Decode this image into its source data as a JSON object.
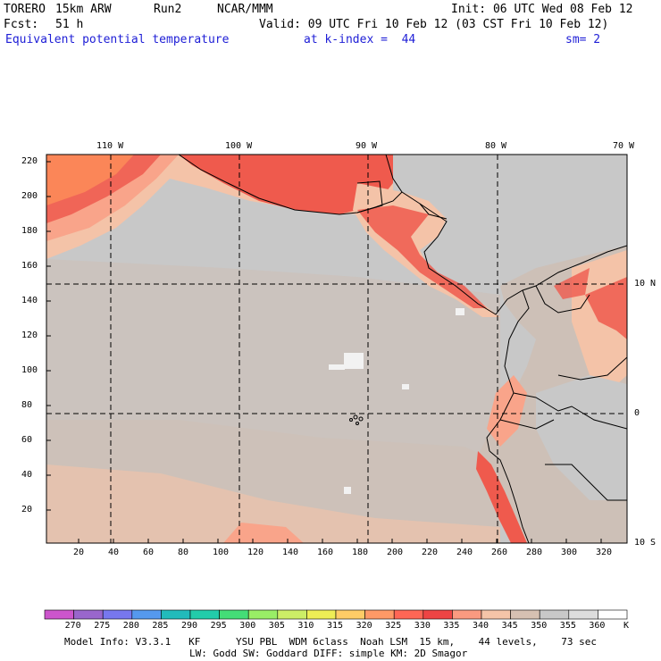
{
  "header": {
    "model": "TORERO",
    "resolution": "15km ARW",
    "run": "Run2",
    "org": "NCAR/MMM",
    "init": "Init: 06 UTC Wed 08 Feb 12",
    "fcst_label": "Fcst:",
    "fcst_value": "51 h",
    "valid": "Valid: 09 UTC Fri 10 Feb 12 (03 CST Fri 10 Feb 12)",
    "field": "Equivalent potential temperature",
    "level": "at k-index =  44",
    "smoothing": "sm= 2"
  },
  "map": {
    "top_lon_labels": [
      "110 W",
      "100 W",
      "90 W",
      "80 W",
      "70 W"
    ],
    "right_lat_labels": [
      "10 N",
      "0",
      "10 S"
    ],
    "left_y_ticks": [
      "220",
      "200",
      "180",
      "160",
      "140",
      "120",
      "100",
      "80",
      "60",
      "40",
      "20"
    ],
    "bottom_x_ticks": [
      "20",
      "40",
      "60",
      "80",
      "100",
      "120",
      "140",
      "160",
      "180",
      "200",
      "220",
      "240",
      "260",
      "280",
      "300",
      "320"
    ],
    "colors": {
      "ocean_gray": "#c8c8c8",
      "mid_gray": "#cdc0b7",
      "salmon_light": "#f4c3a8",
      "salmon": "#f9a48a",
      "orange": "#fb8658",
      "red": "#ef5a4d",
      "white_patch": "#f2f2f2"
    }
  },
  "colorbar": {
    "levels": [
      "270",
      "275",
      "280",
      "285",
      "290",
      "295",
      "300",
      "305",
      "310",
      "315",
      "320",
      "325",
      "330",
      "335",
      "340",
      "345",
      "350",
      "355",
      "360"
    ],
    "unit": "K",
    "colors": [
      "#cc55cc",
      "#9966cc",
      "#7777ee",
      "#5599ee",
      "#22bbbb",
      "#22ccaa",
      "#44dd77",
      "#99ee66",
      "#ccee66",
      "#eeee55",
      "#ffcc66",
      "#ff9966",
      "#ff6655",
      "#ee4444",
      "#fa9a80",
      "#f5c4a8",
      "#d6c0b2",
      "#c8c8c8",
      "#dddddd",
      "#ffffff"
    ]
  },
  "footer": {
    "line1": "Model Info: V3.3.1   KF      YSU PBL  WDM 6class  Noah LSM  15 km,    44 levels,    73 sec",
    "line2": "LW: Godd SW: Goddard DIFF: simple KM: 2D Smagor"
  }
}
